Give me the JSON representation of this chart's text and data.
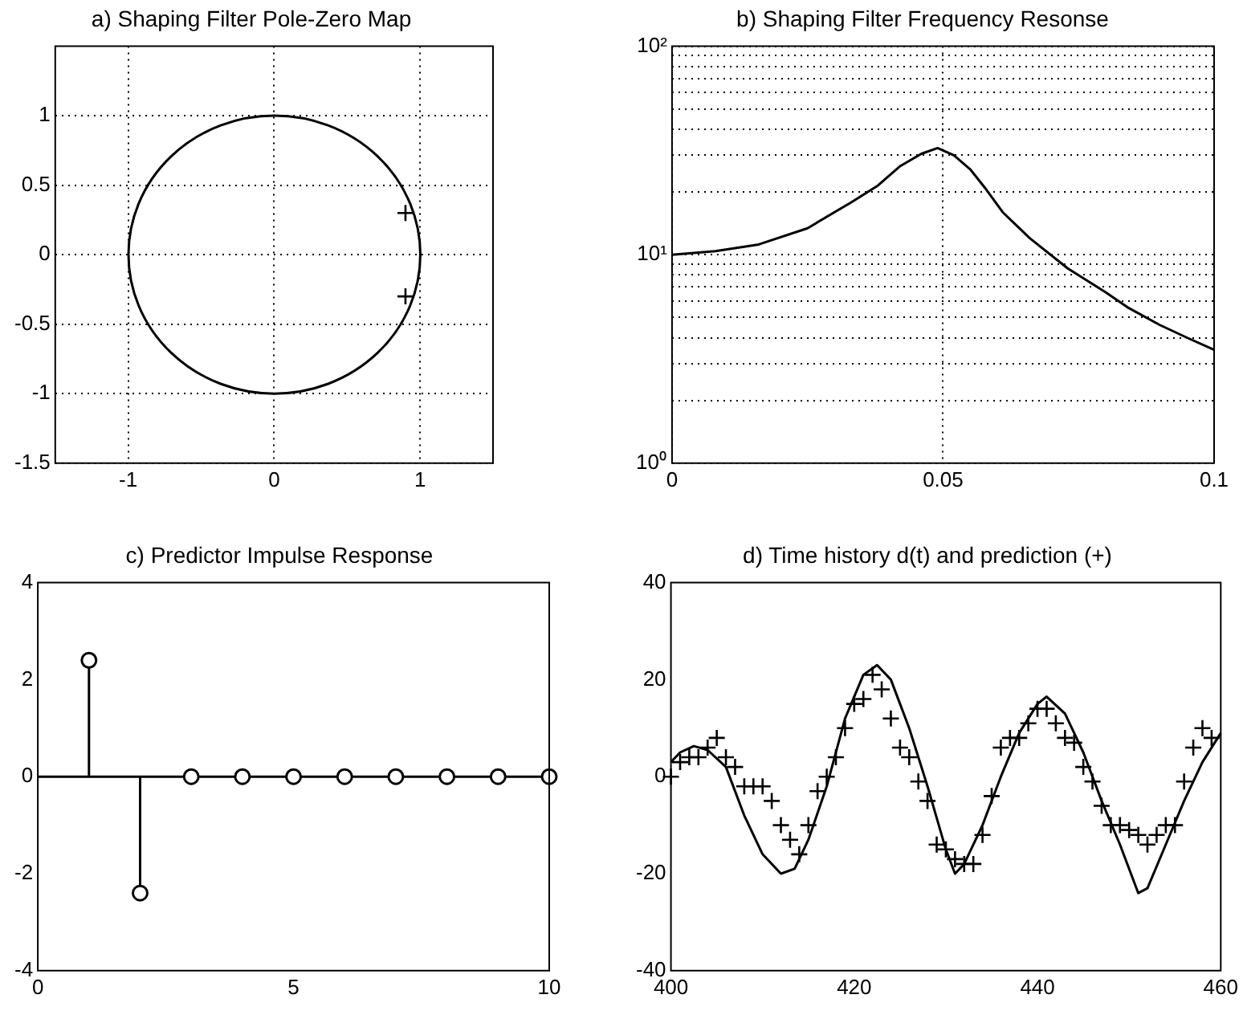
{
  "chart_data": [
    {
      "type": "line",
      "title": "a) Shaping Filter Pole-Zero Map",
      "xlim": [
        -1.5,
        1.5
      ],
      "ylim": [
        -1.5,
        1.5
      ],
      "xticks": [
        -1,
        0,
        1
      ],
      "yticks": [
        -1.5,
        -1,
        -0.5,
        0,
        0.5,
        1
      ],
      "grid": true,
      "series": [
        {
          "type": "scatter",
          "color": "#000000",
          "marker": "cross",
          "x": [
            0.9,
            0.9
          ],
          "values": [
            0.3,
            -0.3
          ]
        }
      ]
    },
    {
      "type": "line",
      "title": "b) Shaping Filter Frequency Resonse",
      "log": "y",
      "xlim": [
        0,
        0.1
      ],
      "ylim": [
        1,
        100
      ],
      "xticks": [
        0,
        0.05,
        0.1
      ],
      "yticks": [
        {
          "value": 1,
          "label": "10⁰"
        },
        {
          "value": 2,
          "label": null
        },
        {
          "value": 3,
          "label": null
        },
        {
          "value": 4,
          "label": null
        },
        {
          "value": 5,
          "label": null
        },
        {
          "value": 6,
          "label": null
        },
        {
          "value": 7,
          "label": null
        },
        {
          "value": 8,
          "label": null
        },
        {
          "value": 9,
          "label": null
        },
        {
          "value": 10,
          "label": "10¹"
        },
        {
          "value": 20,
          "label": null
        },
        {
          "value": 30,
          "label": null
        },
        {
          "value": 40,
          "label": null
        },
        {
          "value": 50,
          "label": null
        },
        {
          "value": 60,
          "label": null
        },
        {
          "value": 70,
          "label": null
        },
        {
          "value": 80,
          "label": null
        },
        {
          "value": 90,
          "label": null
        },
        {
          "value": 100,
          "label": "10²"
        }
      ],
      "grid": true,
      "series": [
        {
          "color": "#000000",
          "marker": "none",
          "x": [
            0,
            0.008,
            0.016,
            0.025,
            0.033,
            0.038,
            0.042,
            0.046,
            0.049,
            0.052,
            0.055,
            0.058,
            0.061,
            0.066,
            0.073,
            0.08,
            0.084,
            0.09,
            0.095,
            0.1
          ],
          "values": [
            10,
            10.4,
            11.2,
            13.4,
            17.8,
            21.5,
            26.5,
            30.5,
            32.5,
            30,
            25.7,
            20.5,
            16,
            12,
            8.6,
            6.6,
            5.6,
            4.6,
            4,
            3.5
          ]
        }
      ]
    },
    {
      "type": "lollipop",
      "title": "c) Predictor Impulse Response",
      "xlim": [
        0,
        10
      ],
      "ylim": [
        -4,
        4
      ],
      "xticks": [
        0,
        5,
        10
      ],
      "yticks": [
        -4,
        -2,
        0,
        2,
        4
      ],
      "marker": "circle",
      "series": [
        {
          "color": "#000000",
          "x": [
            1,
            2,
            3,
            4,
            5,
            6,
            7,
            8,
            9,
            10
          ],
          "values": [
            2.4,
            -2.4,
            0,
            0,
            0,
            0,
            0,
            0,
            0,
            0
          ]
        }
      ]
    },
    {
      "type": "line",
      "title": "d) Time history d(t) and prediction (+)",
      "xlim": [
        400,
        460
      ],
      "ylim": [
        -40,
        40
      ],
      "xticks": [
        400,
        420,
        440,
        460
      ],
      "yticks": [
        -40,
        -20,
        0,
        20,
        40
      ],
      "series": [
        {
          "type": "line",
          "color": "#000000",
          "marker": "none",
          "x": [
            400,
            401,
            402.5,
            404,
            406,
            408,
            410,
            412,
            413.5,
            415,
            417,
            419,
            421,
            422.5,
            424,
            426,
            428,
            430,
            431,
            432,
            434,
            436,
            438,
            440,
            441,
            443,
            445,
            447,
            449,
            451,
            452,
            454,
            456,
            458,
            460
          ],
          "values": [
            3,
            5,
            6.3,
            5.5,
            2,
            -8,
            -16,
            -20,
            -19,
            -13,
            -2,
            12,
            21,
            23,
            20,
            10,
            -2,
            -15,
            -20,
            -18,
            -10,
            0,
            9,
            15,
            16.5,
            13,
            5,
            -5,
            -14,
            -24,
            -23,
            -14,
            -5,
            3,
            9
          ]
        },
        {
          "type": "scatter",
          "color": "#000000",
          "marker": "cross",
          "x": [
            400,
            401,
            402,
            403,
            404,
            405,
            406,
            407,
            408,
            409,
            410,
            411,
            412,
            413,
            414,
            415,
            416,
            417,
            418,
            419,
            420,
            421,
            422,
            423,
            424,
            425,
            426,
            427,
            428,
            429,
            430,
            431,
            432,
            433,
            434,
            435,
            436,
            437,
            438,
            439,
            440,
            441,
            442,
            443,
            444,
            445,
            446,
            447,
            448,
            449,
            450,
            451,
            452,
            453,
            454,
            455,
            456,
            457,
            458,
            459
          ],
          "values": [
            0,
            3,
            4,
            4,
            6,
            8,
            4,
            2,
            -2,
            -2,
            -2,
            -5,
            -10,
            -13,
            -16,
            -10,
            -3,
            0,
            4,
            10,
            15,
            16,
            21,
            18,
            12,
            6,
            4,
            -1,
            -5,
            -14,
            -15,
            -17,
            -18,
            -18,
            -12,
            -4,
            6,
            8,
            8,
            11,
            14,
            14,
            11,
            8,
            7,
            2,
            -1,
            -6,
            -10,
            -10,
            -11,
            -12,
            -14,
            -12,
            -10,
            -10,
            -1,
            6,
            10,
            8
          ]
        }
      ]
    }
  ]
}
